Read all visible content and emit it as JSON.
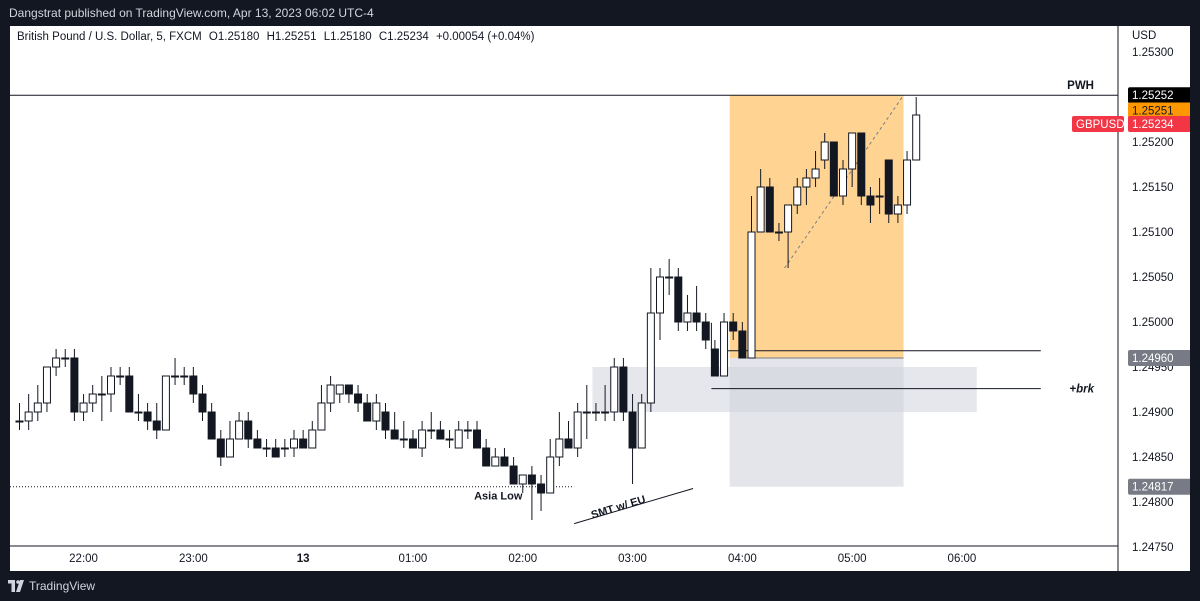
{
  "header": {
    "publisher_line": "Dangstrat published on TradingView.com, Apr 13, 2023 06:02 UTC-4"
  },
  "legend": {
    "symbol": "British Pound / U.S. Dollar, 5, FXCM",
    "open": "O1.25180",
    "high": "H1.25251",
    "low": "L1.25180",
    "close": "C1.25234",
    "change": "+0.00054 (+0.04%)"
  },
  "footer": {
    "brand": "TradingView"
  },
  "chart_data": {
    "type": "candlestick",
    "currency": "USD",
    "y_range": [
      1.2474,
      1.2532
    ],
    "y_ticks": [
      "1.25300",
      "1.25250",
      "1.25200",
      "1.25150",
      "1.25100",
      "1.25050",
      "1.25000",
      "1.24950",
      "1.24900",
      "1.24850",
      "1.24800",
      "1.24750"
    ],
    "x_ticks": [
      {
        "label": "22:00",
        "bar": 7
      },
      {
        "label": "23:00",
        "bar": 19
      },
      {
        "label": "13",
        "bar": 31,
        "bold": true
      },
      {
        "label": "01:00",
        "bar": 43
      },
      {
        "label": "02:00",
        "bar": 55
      },
      {
        "label": "03:00",
        "bar": 67
      },
      {
        "label": "04:00",
        "bar": 79
      },
      {
        "label": "05:00",
        "bar": 91
      },
      {
        "label": "06:00",
        "bar": 103
      }
    ],
    "candles": [
      {
        "o": 1.2489,
        "h": 1.2491,
        "l": 1.2488,
        "c": 1.2489
      },
      {
        "o": 1.2489,
        "h": 1.2492,
        "l": 1.2488,
        "c": 1.249
      },
      {
        "o": 1.249,
        "h": 1.2493,
        "l": 1.2489,
        "c": 1.2491
      },
      {
        "o": 1.2491,
        "h": 1.2495,
        "l": 1.249,
        "c": 1.2495
      },
      {
        "o": 1.2495,
        "h": 1.2497,
        "l": 1.2494,
        "c": 1.2496
      },
      {
        "o": 1.2496,
        "h": 1.2497,
        "l": 1.2495,
        "c": 1.2496
      },
      {
        "o": 1.2496,
        "h": 1.2497,
        "l": 1.2489,
        "c": 1.249
      },
      {
        "o": 1.249,
        "h": 1.2492,
        "l": 1.2489,
        "c": 1.2491
      },
      {
        "o": 1.2491,
        "h": 1.2493,
        "l": 1.249,
        "c": 1.2492
      },
      {
        "o": 1.2492,
        "h": 1.2494,
        "l": 1.2489,
        "c": 1.2492
      },
      {
        "o": 1.2492,
        "h": 1.2495,
        "l": 1.249,
        "c": 1.2494
      },
      {
        "o": 1.2494,
        "h": 1.2495,
        "l": 1.2493,
        "c": 1.2494
      },
      {
        "o": 1.2494,
        "h": 1.2495,
        "l": 1.249,
        "c": 1.249
      },
      {
        "o": 1.249,
        "h": 1.2492,
        "l": 1.2489,
        "c": 1.249
      },
      {
        "o": 1.249,
        "h": 1.2491,
        "l": 1.2488,
        "c": 1.2489
      },
      {
        "o": 1.2489,
        "h": 1.2491,
        "l": 1.2487,
        "c": 1.2488
      },
      {
        "o": 1.2488,
        "h": 1.2494,
        "l": 1.2488,
        "c": 1.2494
      },
      {
        "o": 1.2494,
        "h": 1.2496,
        "l": 1.2493,
        "c": 1.2494
      },
      {
        "o": 1.2494,
        "h": 1.2495,
        "l": 1.2493,
        "c": 1.2494
      },
      {
        "o": 1.2494,
        "h": 1.2495,
        "l": 1.2491,
        "c": 1.2492
      },
      {
        "o": 1.2492,
        "h": 1.2493,
        "l": 1.2489,
        "c": 1.249
      },
      {
        "o": 1.249,
        "h": 1.2491,
        "l": 1.2487,
        "c": 1.2487
      },
      {
        "o": 1.2487,
        "h": 1.2488,
        "l": 1.2484,
        "c": 1.2485
      },
      {
        "o": 1.2485,
        "h": 1.2489,
        "l": 1.2485,
        "c": 1.2487
      },
      {
        "o": 1.2487,
        "h": 1.249,
        "l": 1.2487,
        "c": 1.2489
      },
      {
        "o": 1.2489,
        "h": 1.249,
        "l": 1.2486,
        "c": 1.2487
      },
      {
        "o": 1.2487,
        "h": 1.2488,
        "l": 1.2486,
        "c": 1.2486
      },
      {
        "o": 1.2486,
        "h": 1.2487,
        "l": 1.2485,
        "c": 1.2486
      },
      {
        "o": 1.2486,
        "h": 1.2487,
        "l": 1.2485,
        "c": 1.2485
      },
      {
        "o": 1.2486,
        "h": 1.2487,
        "l": 1.2485,
        "c": 1.2486
      },
      {
        "o": 1.2486,
        "h": 1.2488,
        "l": 1.2485,
        "c": 1.2487
      },
      {
        "o": 1.2487,
        "h": 1.2488,
        "l": 1.2486,
        "c": 1.2486
      },
      {
        "o": 1.2486,
        "h": 1.2489,
        "l": 1.2486,
        "c": 1.2488
      },
      {
        "o": 1.2488,
        "h": 1.2493,
        "l": 1.2488,
        "c": 1.2491
      },
      {
        "o": 1.2491,
        "h": 1.2494,
        "l": 1.249,
        "c": 1.2493
      },
      {
        "o": 1.2492,
        "h": 1.2493,
        "l": 1.2491,
        "c": 1.2493
      },
      {
        "o": 1.2493,
        "h": 1.2493,
        "l": 1.2491,
        "c": 1.2492
      },
      {
        "o": 1.2492,
        "h": 1.2493,
        "l": 1.249,
        "c": 1.2491
      },
      {
        "o": 1.2491,
        "h": 1.2492,
        "l": 1.2489,
        "c": 1.2489
      },
      {
        "o": 1.2489,
        "h": 1.2492,
        "l": 1.2488,
        "c": 1.2491
      },
      {
        "o": 1.249,
        "h": 1.2491,
        "l": 1.2487,
        "c": 1.2488
      },
      {
        "o": 1.2488,
        "h": 1.249,
        "l": 1.2487,
        "c": 1.2487
      },
      {
        "o": 1.2487,
        "h": 1.2489,
        "l": 1.2486,
        "c": 1.2487
      },
      {
        "o": 1.2487,
        "h": 1.2488,
        "l": 1.2486,
        "c": 1.2486
      },
      {
        "o": 1.2486,
        "h": 1.2489,
        "l": 1.2485,
        "c": 1.2488
      },
      {
        "o": 1.2488,
        "h": 1.249,
        "l": 1.2487,
        "c": 1.2488
      },
      {
        "o": 1.2488,
        "h": 1.2489,
        "l": 1.2487,
        "c": 1.2487
      },
      {
        "o": 1.2487,
        "h": 1.2488,
        "l": 1.2486,
        "c": 1.2487
      },
      {
        "o": 1.2486,
        "h": 1.2489,
        "l": 1.2486,
        "c": 1.2488
      },
      {
        "o": 1.2488,
        "h": 1.2489,
        "l": 1.2487,
        "c": 1.2488
      },
      {
        "o": 1.2488,
        "h": 1.2489,
        "l": 1.2486,
        "c": 1.2486
      },
      {
        "o": 1.2486,
        "h": 1.2487,
        "l": 1.2484,
        "c": 1.2484
      },
      {
        "o": 1.2484,
        "h": 1.2486,
        "l": 1.2484,
        "c": 1.2485
      },
      {
        "o": 1.2485,
        "h": 1.2486,
        "l": 1.2484,
        "c": 1.2484
      },
      {
        "o": 1.2484,
        "h": 1.2485,
        "l": 1.2482,
        "c": 1.2482
      },
      {
        "o": 1.2482,
        "h": 1.2483,
        "l": 1.2481,
        "c": 1.2483
      },
      {
        "o": 1.2483,
        "h": 1.2484,
        "l": 1.2478,
        "c": 1.2482
      },
      {
        "o": 1.2482,
        "h": 1.2483,
        "l": 1.2479,
        "c": 1.2481
      },
      {
        "o": 1.2481,
        "h": 1.2487,
        "l": 1.2481,
        "c": 1.2485
      },
      {
        "o": 1.2485,
        "h": 1.249,
        "l": 1.2484,
        "c": 1.2487
      },
      {
        "o": 1.2487,
        "h": 1.2489,
        "l": 1.2486,
        "c": 1.2486
      },
      {
        "o": 1.2486,
        "h": 1.2491,
        "l": 1.2485,
        "c": 1.249
      },
      {
        "o": 1.249,
        "h": 1.2493,
        "l": 1.2487,
        "c": 1.249
      },
      {
        "o": 1.249,
        "h": 1.2491,
        "l": 1.2489,
        "c": 1.249
      },
      {
        "o": 1.249,
        "h": 1.2493,
        "l": 1.2489,
        "c": 1.249
      },
      {
        "o": 1.249,
        "h": 1.2496,
        "l": 1.2489,
        "c": 1.2495
      },
      {
        "o": 1.2495,
        "h": 1.2496,
        "l": 1.2489,
        "c": 1.249
      },
      {
        "o": 1.249,
        "h": 1.2492,
        "l": 1.2482,
        "c": 1.2486
      },
      {
        "o": 1.2486,
        "h": 1.2492,
        "l": 1.2486,
        "c": 1.2491
      },
      {
        "o": 1.2491,
        "h": 1.2506,
        "l": 1.249,
        "c": 1.2501
      },
      {
        "o": 1.2501,
        "h": 1.2506,
        "l": 1.2498,
        "c": 1.2505
      },
      {
        "o": 1.2505,
        "h": 1.2507,
        "l": 1.2503,
        "c": 1.2505
      },
      {
        "o": 1.2505,
        "h": 1.2506,
        "l": 1.2499,
        "c": 1.25
      },
      {
        "o": 1.25,
        "h": 1.2503,
        "l": 1.2499,
        "c": 1.2501
      },
      {
        "o": 1.2501,
        "h": 1.2504,
        "l": 1.2499,
        "c": 1.25
      },
      {
        "o": 1.25,
        "h": 1.2501,
        "l": 1.2497,
        "c": 1.2498
      },
      {
        "o": 1.2497,
        "h": 1.2498,
        "l": 1.2494,
        "c": 1.2494
      },
      {
        "o": 1.2494,
        "h": 1.2501,
        "l": 1.2494,
        "c": 1.25
      },
      {
        "o": 1.25,
        "h": 1.2501,
        "l": 1.2498,
        "c": 1.2499
      },
      {
        "o": 1.2499,
        "h": 1.25,
        "l": 1.2496,
        "c": 1.2496
      },
      {
        "o": 1.2496,
        "h": 1.2514,
        "l": 1.2496,
        "c": 1.251
      },
      {
        "o": 1.251,
        "h": 1.2517,
        "l": 1.251,
        "c": 1.2515
      },
      {
        "o": 1.2515,
        "h": 1.2516,
        "l": 1.251,
        "c": 1.251
      },
      {
        "o": 1.251,
        "h": 1.2511,
        "l": 1.2509,
        "c": 1.251
      },
      {
        "o": 1.251,
        "h": 1.2513,
        "l": 1.2506,
        "c": 1.2513
      },
      {
        "o": 1.2513,
        "h": 1.2516,
        "l": 1.2512,
        "c": 1.2515
      },
      {
        "o": 1.2515,
        "h": 1.2517,
        "l": 1.2513,
        "c": 1.2516
      },
      {
        "o": 1.2516,
        "h": 1.2519,
        "l": 1.2515,
        "c": 1.2517
      },
      {
        "o": 1.2518,
        "h": 1.2521,
        "l": 1.2517,
        "c": 1.252
      },
      {
        "o": 1.252,
        "h": 1.252,
        "l": 1.2514,
        "c": 1.2514
      },
      {
        "o": 1.2514,
        "h": 1.2518,
        "l": 1.2513,
        "c": 1.2517
      },
      {
        "o": 1.2517,
        "h": 1.2521,
        "l": 1.2515,
        "c": 1.2521
      },
      {
        "o": 1.2521,
        "h": 1.2521,
        "l": 1.2513,
        "c": 1.2514
      },
      {
        "o": 1.2514,
        "h": 1.2515,
        "l": 1.2511,
        "c": 1.2513
      },
      {
        "o": 1.2514,
        "h": 1.2516,
        "l": 1.2512,
        "c": 1.2514
      },
      {
        "o": 1.2518,
        "h": 1.2518,
        "l": 1.2511,
        "c": 1.2512
      },
      {
        "o": 1.2512,
        "h": 1.2514,
        "l": 1.2511,
        "c": 1.2513
      },
      {
        "o": 1.2513,
        "h": 1.2519,
        "l": 1.2512,
        "c": 1.2518
      },
      {
        "o": 1.2518,
        "h": 1.2525,
        "l": 1.2518,
        "c": 1.2523
      }
    ],
    "price_labels": {
      "pwh": {
        "text": "1.25252",
        "price": 1.25252,
        "color": "#000000"
      },
      "entry": {
        "text": "1.25251",
        "price": 1.25251,
        "color": "#ff9800"
      },
      "current": {
        "text": "1.25234",
        "price": 1.25234,
        "color": "#f23645",
        "tag": "GBPUSD"
      },
      "stop": {
        "text": "1.24960",
        "price": 1.2496,
        "color": "#787b86"
      },
      "low": {
        "text": "1.24817",
        "price": 1.24817,
        "color": "#787b86"
      }
    },
    "levels": {
      "pwh": 1.25252,
      "asia_low": 1.24817,
      "brk": 1.24926,
      "ref": 1.24968
    },
    "zones": {
      "profit": {
        "from_bar": 78,
        "to_bar": 97,
        "top": 1.25252,
        "bottom": 1.2496,
        "color": "#ffcc80"
      },
      "loss": {
        "from_bar": 78,
        "to_bar": 97,
        "top": 1.2496,
        "bottom": 1.24817,
        "color": "#d1d4dc"
      },
      "range": {
        "from_bar": 63,
        "to_bar": 105,
        "top": 1.2495,
        "bottom": 1.249,
        "color": "#d1d4dc"
      }
    },
    "annotations": {
      "pwh": "PWH",
      "brk": "+brk",
      "asia_low": "Asia Low",
      "smt": "SMT w/ EU",
      "symbol_tag": "GBPUSD"
    }
  }
}
